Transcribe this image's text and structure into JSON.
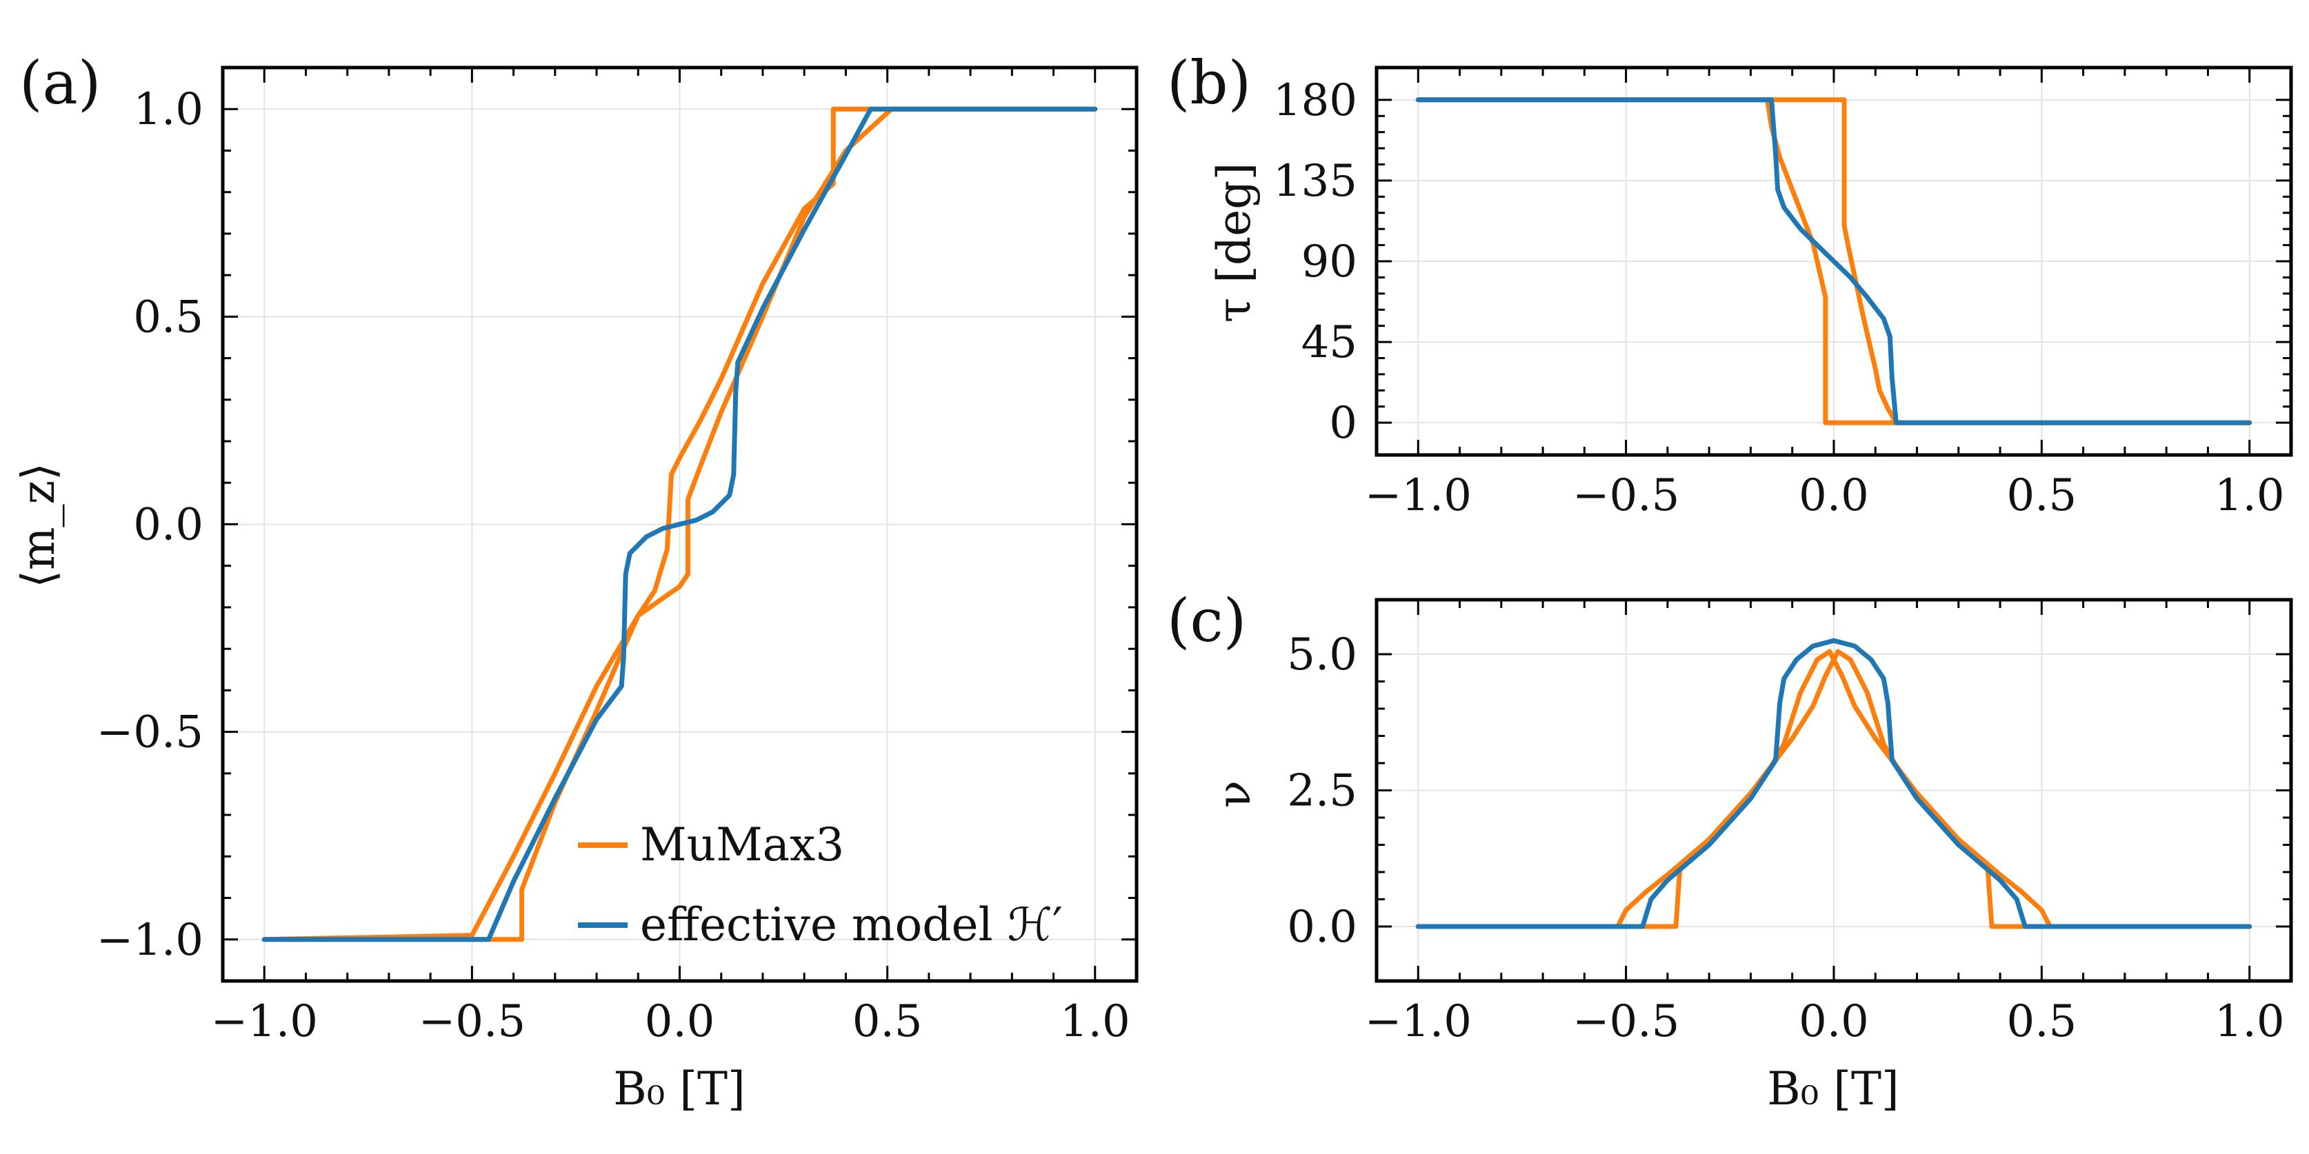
{
  "colors": {
    "mumax": "#ff7f0e",
    "effective": "#1f77b4",
    "grid": "#e3e3e3",
    "frame": "#000000"
  },
  "chart_data": [
    {
      "id": "a",
      "type": "line",
      "panel_label": "(a)",
      "xlabel": "B₀ [T]",
      "ylabel": "⟨m_z⟩",
      "xlim": [
        -1.1,
        1.1
      ],
      "ylim": [
        -1.1,
        1.1
      ],
      "xticks": [
        -1.0,
        -0.5,
        0.0,
        0.5,
        1.0
      ],
      "xtick_labels": [
        "−1.0",
        "−0.5",
        "0.0",
        "0.5",
        "1.0"
      ],
      "yticks": [
        -1.0,
        -0.5,
        0.0,
        0.5,
        1.0
      ],
      "ytick_labels": [
        "−1.0",
        "−0.5",
        "0.0",
        "0.5",
        "1.0"
      ],
      "grid": true,
      "legend": {
        "placement": "lower-right",
        "entries": [
          "MuMax3",
          "effective model ℋ′"
        ]
      },
      "series": [
        {
          "name": "MuMax3",
          "color": "#ff7f0e",
          "segments": [
            [
              [
                -1,
                -1
              ],
              [
                -0.52,
                -1
              ],
              [
                -0.38,
                -1
              ],
              [
                -0.38,
                -0.88
              ],
              [
                -0.3,
                -0.67
              ],
              [
                -0.2,
                -0.45
              ],
              [
                -0.14,
                -0.31
              ],
              [
                -0.1,
                -0.22
              ],
              [
                -0.06,
                -0.16
              ],
              [
                -0.03,
                -0.06
              ],
              [
                -0.02,
                0.12
              ],
              [
                0,
                0.16
              ],
              [
                0.05,
                0.25
              ],
              [
                0.1,
                0.35
              ],
              [
                0.2,
                0.58
              ],
              [
                0.3,
                0.76
              ],
              [
                0.37,
                0.82
              ],
              [
                0.37,
                1
              ],
              [
                0.5,
                1
              ],
              [
                1,
                1
              ]
            ],
            [
              [
                -1,
                -1
              ],
              [
                -0.5,
                -0.99
              ],
              [
                -0.4,
                -0.8
              ],
              [
                -0.3,
                -0.6
              ],
              [
                -0.2,
                -0.39
              ],
              [
                -0.1,
                -0.22
              ],
              [
                0,
                -0.15
              ],
              [
                0.02,
                -0.12
              ],
              [
                0.02,
                0.06
              ],
              [
                0.05,
                0.14
              ],
              [
                0.1,
                0.27
              ],
              [
                0.2,
                0.5
              ],
              [
                0.3,
                0.74
              ],
              [
                0.4,
                0.9
              ],
              [
                0.51,
                1
              ],
              [
                1,
                1
              ]
            ]
          ]
        },
        {
          "name": "effective model ℋ′",
          "color": "#1f77b4",
          "segments": [
            [
              [
                -1,
                -1
              ],
              [
                -0.46,
                -1
              ],
              [
                -0.4,
                -0.86
              ],
              [
                -0.3,
                -0.66
              ],
              [
                -0.2,
                -0.47
              ],
              [
                -0.14,
                -0.39
              ],
              [
                -0.135,
                -0.32
              ],
              [
                -0.13,
                -0.12
              ],
              [
                -0.12,
                -0.07
              ],
              [
                -0.08,
                -0.03
              ],
              [
                -0.04,
                -0.01
              ],
              [
                0,
                0
              ],
              [
                0.04,
                0.01
              ],
              [
                0.08,
                0.03
              ],
              [
                0.12,
                0.07
              ],
              [
                0.13,
                0.12
              ],
              [
                0.135,
                0.32
              ],
              [
                0.14,
                0.39
              ],
              [
                0.2,
                0.52
              ],
              [
                0.3,
                0.71
              ],
              [
                0.4,
                0.89
              ],
              [
                0.46,
                1
              ],
              [
                1,
                1
              ]
            ]
          ]
        }
      ]
    },
    {
      "id": "b",
      "type": "line",
      "panel_label": "(b)",
      "xlabel": "",
      "ylabel": "τ [deg]",
      "xlim": [
        -1.1,
        1.1
      ],
      "ylim": [
        -18,
        198
      ],
      "xticks": [
        -1.0,
        -0.5,
        0.0,
        0.5,
        1.0
      ],
      "xtick_labels": [
        "−1.0",
        "−0.5",
        "0.0",
        "0.5",
        "1.0"
      ],
      "yticks": [
        0,
        45,
        90,
        135,
        180
      ],
      "ytick_labels": [
        "0",
        "45",
        "90",
        "135",
        "180"
      ],
      "grid": true,
      "series": [
        {
          "name": "MuMax3",
          "color": "#ff7f0e",
          "segments": [
            [
              [
                -1,
                180
              ],
              [
                0.025,
                180
              ],
              [
                0.025,
                110
              ],
              [
                0.035,
                98
              ],
              [
                0.05,
                82
              ],
              [
                0.07,
                60
              ],
              [
                0.09,
                40
              ],
              [
                0.1,
                30
              ],
              [
                0.11,
                18
              ],
              [
                0.13,
                8
              ],
              [
                0.15,
                0
              ],
              [
                1,
                0
              ]
            ],
            [
              [
                -1,
                180
              ],
              [
                -0.16,
                180
              ],
              [
                -0.15,
                165
              ],
              [
                -0.13,
                148
              ],
              [
                -0.1,
                130
              ],
              [
                -0.08,
                118
              ],
              [
                -0.05,
                100
              ],
              [
                -0.03,
                80
              ],
              [
                -0.02,
                70
              ],
              [
                -0.02,
                0
              ],
              [
                1,
                0
              ]
            ]
          ]
        },
        {
          "name": "effective model ℋ′",
          "color": "#1f77b4",
          "segments": [
            [
              [
                -1,
                180
              ],
              [
                -0.15,
                180
              ],
              [
                -0.14,
                150
              ],
              [
                -0.135,
                130
              ],
              [
                -0.12,
                120
              ],
              [
                -0.08,
                108
              ],
              [
                -0.04,
                99
              ],
              [
                0,
                90
              ],
              [
                0.04,
                81
              ],
              [
                0.08,
                70
              ],
              [
                0.12,
                58
              ],
              [
                0.135,
                48
              ],
              [
                0.14,
                25
              ],
              [
                0.15,
                0
              ],
              [
                1,
                0
              ]
            ]
          ]
        }
      ]
    },
    {
      "id": "c",
      "type": "line",
      "panel_label": "(c)",
      "xlabel": "B₀ [T]",
      "ylabel": "ν",
      "xlim": [
        -1.1,
        1.1
      ],
      "ylim": [
        -1.0,
        6.0
      ],
      "xticks": [
        -1.0,
        -0.5,
        0.0,
        0.5,
        1.0
      ],
      "xtick_labels": [
        "−1.0",
        "−0.5",
        "0.0",
        "0.5",
        "1.0"
      ],
      "yticks": [
        0.0,
        2.5,
        5.0
      ],
      "ytick_labels": [
        "0.0",
        "2.5",
        "5.0"
      ],
      "grid": true,
      "series": [
        {
          "name": "MuMax3",
          "color": "#ff7f0e",
          "segments": [
            [
              [
                -1,
                0
              ],
              [
                -0.52,
                0
              ],
              [
                -0.5,
                0.3
              ],
              [
                -0.45,
                0.65
              ],
              [
                -0.4,
                0.95
              ],
              [
                -0.3,
                1.6
              ],
              [
                -0.2,
                2.45
              ],
              [
                -0.14,
                3.05
              ],
              [
                -0.1,
                3.45
              ],
              [
                -0.05,
                4.05
              ],
              [
                -0.02,
                4.6
              ],
              [
                0.01,
                5.05
              ],
              [
                0.04,
                4.9
              ],
              [
                0.08,
                4.3
              ],
              [
                0.12,
                3.35
              ],
              [
                0.15,
                2.95
              ],
              [
                0.2,
                2.4
              ],
              [
                0.3,
                1.55
              ],
              [
                0.37,
                1.1
              ],
              [
                0.38,
                0
              ],
              [
                1,
                0
              ]
            ],
            [
              [
                -1,
                0
              ],
              [
                -0.38,
                0
              ],
              [
                -0.37,
                1.1
              ],
              [
                -0.3,
                1.55
              ],
              [
                -0.2,
                2.4
              ],
              [
                -0.15,
                2.95
              ],
              [
                -0.12,
                3.35
              ],
              [
                -0.08,
                4.3
              ],
              [
                -0.04,
                4.9
              ],
              [
                -0.01,
                5.05
              ],
              [
                0.02,
                4.6
              ],
              [
                0.05,
                4.05
              ],
              [
                0.1,
                3.45
              ],
              [
                0.14,
                3.05
              ],
              [
                0.2,
                2.45
              ],
              [
                0.3,
                1.6
              ],
              [
                0.4,
                0.95
              ],
              [
                0.45,
                0.65
              ],
              [
                0.5,
                0.3
              ],
              [
                0.52,
                0
              ],
              [
                1,
                0
              ]
            ]
          ]
        },
        {
          "name": "effective model ℋ′",
          "color": "#1f77b4",
          "segments": [
            [
              [
                -1,
                0
              ],
              [
                -0.46,
                0
              ],
              [
                -0.44,
                0.5
              ],
              [
                -0.4,
                0.85
              ],
              [
                -0.3,
                1.5
              ],
              [
                -0.2,
                2.35
              ],
              [
                -0.14,
                3.05
              ],
              [
                -0.13,
                4.1
              ],
              [
                -0.12,
                4.55
              ],
              [
                -0.09,
                4.9
              ],
              [
                -0.05,
                5.15
              ],
              [
                0,
                5.25
              ],
              [
                0.05,
                5.15
              ],
              [
                0.09,
                4.9
              ],
              [
                0.12,
                4.55
              ],
              [
                0.13,
                4.1
              ],
              [
                0.14,
                3.05
              ],
              [
                0.2,
                2.35
              ],
              [
                0.3,
                1.5
              ],
              [
                0.4,
                0.85
              ],
              [
                0.44,
                0.5
              ],
              [
                0.46,
                0
              ],
              [
                1,
                0
              ]
            ]
          ]
        }
      ]
    }
  ]
}
